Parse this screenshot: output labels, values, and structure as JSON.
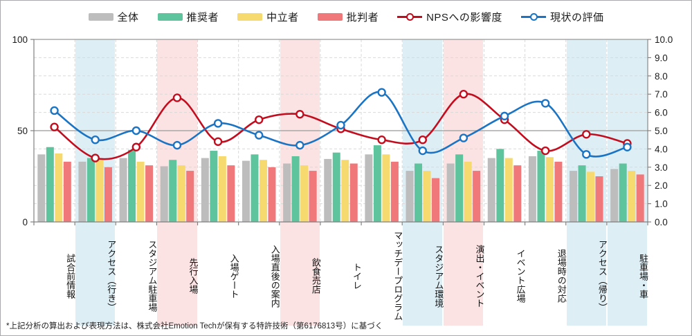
{
  "legend": {
    "items": [
      {
        "label": "全体",
        "type": "bar",
        "color": "#bdbdbd"
      },
      {
        "label": "推奨者",
        "type": "bar",
        "color": "#5ec49e"
      },
      {
        "label": "中立者",
        "type": "bar",
        "color": "#f6d96f"
      },
      {
        "label": "批判者",
        "type": "bar",
        "color": "#f0777a"
      },
      {
        "label": "NPSへの影響度",
        "type": "line",
        "color": "#c20d1f"
      },
      {
        "label": "現状の評価",
        "type": "line",
        "color": "#1b74c3"
      }
    ]
  },
  "footer": {
    "note": "*上記分析の算出および表現方法は、株式会社Emotion Techが保有する特許技術（第6176813号）に基づく"
  },
  "chart_data": {
    "type": "combo-bar-line",
    "categories": [
      "試合前情報",
      "アクセス（行き）",
      "スタジアム駐車場",
      "先行入場",
      "入場ゲート",
      "入場直後の案内",
      "飲食売店",
      "トイレ",
      "マッチデープログラム",
      "スタジアム環境",
      "演出・イベント",
      "イベント広場",
      "退場時の対応",
      "アクセス（帰り）",
      "駐車場・車"
    ],
    "column_highlights": [
      "none",
      "blue",
      "none",
      "pink",
      "none",
      "none",
      "pink",
      "none",
      "none",
      "blue",
      "pink",
      "none",
      "none",
      "blue",
      "blue"
    ],
    "highlight_colors": {
      "blue": "#ddeef5",
      "pink": "#fbe2e3"
    },
    "bar_series": [
      {
        "name": "全体",
        "color": "#bdbdbd",
        "values": [
          37,
          33,
          35,
          30.5,
          35,
          33.5,
          32,
          34.5,
          37,
          28,
          32,
          35,
          36,
          28,
          29
        ]
      },
      {
        "name": "推奨者",
        "color": "#5ec49e",
        "values": [
          41,
          35,
          39.5,
          34,
          39,
          37,
          36,
          38,
          42,
          32,
          37,
          40,
          39,
          31,
          32
        ]
      },
      {
        "name": "中立者",
        "color": "#f6d96f",
        "values": [
          37.5,
          34,
          33,
          31,
          36,
          34,
          31,
          34,
          37,
          28,
          33,
          35,
          35.5,
          27.5,
          28
        ]
      },
      {
        "name": "批判者",
        "color": "#f0777a",
        "values": [
          33,
          30,
          31,
          28,
          31,
          30,
          28,
          32,
          33,
          24,
          28,
          31,
          33,
          25,
          26
        ]
      }
    ],
    "line_series": [
      {
        "name": "NPSへの影響度",
        "color": "#c20d1f",
        "axis": "right",
        "values": [
          5.2,
          3.5,
          4.1,
          6.8,
          4.4,
          5.6,
          5.9,
          5.1,
          4.5,
          4.5,
          7.0,
          5.6,
          3.9,
          4.8,
          4.3
        ]
      },
      {
        "name": "現状の評価",
        "color": "#1b74c3",
        "axis": "right",
        "values": [
          6.1,
          4.5,
          5.0,
          4.2,
          5.4,
          4.75,
          4.2,
          5.3,
          7.1,
          3.9,
          4.6,
          5.8,
          6.5,
          3.7,
          4.1
        ]
      }
    ],
    "left_axis": {
      "min": 0,
      "max": 100,
      "tick_labels": [
        "0",
        "50",
        "100"
      ],
      "tick_values": [
        0,
        50,
        100
      ]
    },
    "right_axis": {
      "min": 0,
      "max": 10,
      "step": 1,
      "tick_labels": [
        "0.0",
        "1.0",
        "2.0",
        "3.0",
        "4.0",
        "5.0",
        "6.0",
        "7.0",
        "8.0",
        "9.0",
        "10.0"
      ]
    },
    "grid": {
      "h_step_right_axis": 1,
      "dashed_color": "#d9d9d9",
      "solid_mid_value": 50,
      "solid_color": "#a8a8a8",
      "vertical_dashed": true
    },
    "axis_line_color": "#808080",
    "legend_position": "top-center"
  }
}
